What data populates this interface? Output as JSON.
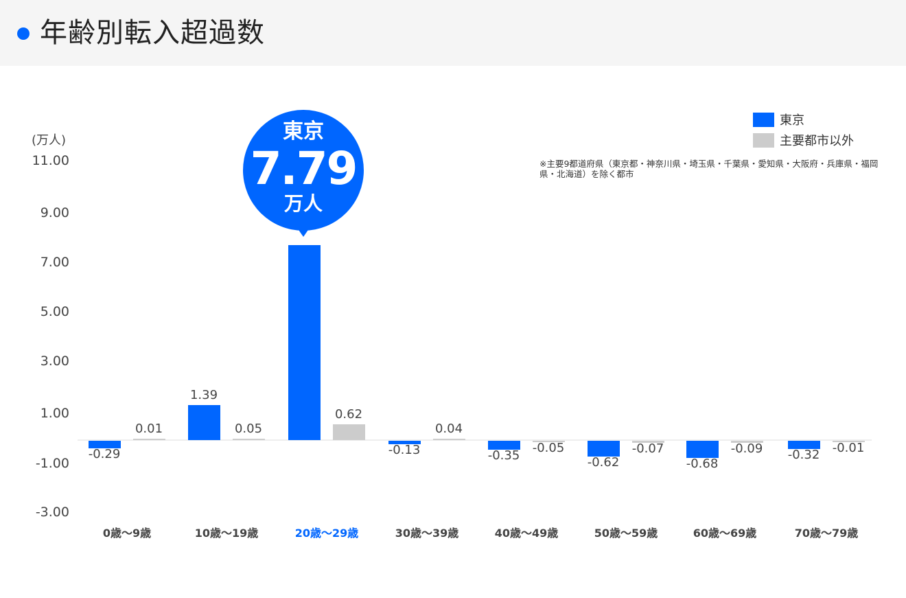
{
  "header": {
    "title": "年齢別転入超過数",
    "accent": "#0066ff"
  },
  "legend": {
    "items": [
      {
        "label": "東京",
        "color": "#0066ff"
      },
      {
        "label": "主要都市以外",
        "color": "#cccccc"
      }
    ]
  },
  "note": "※主要9都道府県（東京都・神奈川県・埼玉県・千葉県・愛知県・大阪府・兵庫県・福岡県・北海道）を除く都市",
  "callout": {
    "label": "東京",
    "value": "7.79",
    "unit": "万人"
  },
  "y_axis": {
    "unit": "(万人)",
    "ticks": [
      "11.00",
      "9.00",
      "7.00",
      "5.00",
      "3.00",
      "1.00",
      "-1.00",
      "-3.00"
    ]
  },
  "chart_data": {
    "type": "bar",
    "title": "年齢別転入超過数",
    "xlabel": "",
    "ylabel": "(万人)",
    "ylim": [
      -3,
      11
    ],
    "yticks": [
      11,
      9,
      7,
      5,
      3,
      1,
      -1,
      -3
    ],
    "grid": false,
    "legend_position": "top-right",
    "highlighted_category": "20歳〜29歳",
    "categories": [
      "0歳〜9歳",
      "10歳〜19歳",
      "20歳〜29歳",
      "30歳〜39歳",
      "40歳〜49歳",
      "50歳〜59歳",
      "60歳〜69歳",
      "70歳〜79歳"
    ],
    "series": [
      {
        "name": "東京",
        "color": "#0066ff",
        "values": [
          -0.29,
          1.39,
          7.79,
          -0.13,
          -0.35,
          -0.62,
          -0.68,
          -0.32
        ]
      },
      {
        "name": "主要都市以外",
        "color": "#cccccc",
        "values": [
          0.01,
          0.05,
          0.62,
          0.04,
          -0.05,
          -0.07,
          -0.09,
          -0.01
        ]
      }
    ],
    "value_labels": {
      "東京": [
        "-0.29",
        "1.39",
        "",
        "-0.13",
        "-0.35",
        "-0.62",
        "-0.68",
        "-0.32"
      ],
      "主要都市以外": [
        "0.01",
        "0.05",
        "0.62",
        "0.04",
        "-0.05",
        "-0.07",
        "-0.09",
        "-0.01"
      ]
    },
    "annotations": [
      "東京 7.79 万人"
    ]
  }
}
